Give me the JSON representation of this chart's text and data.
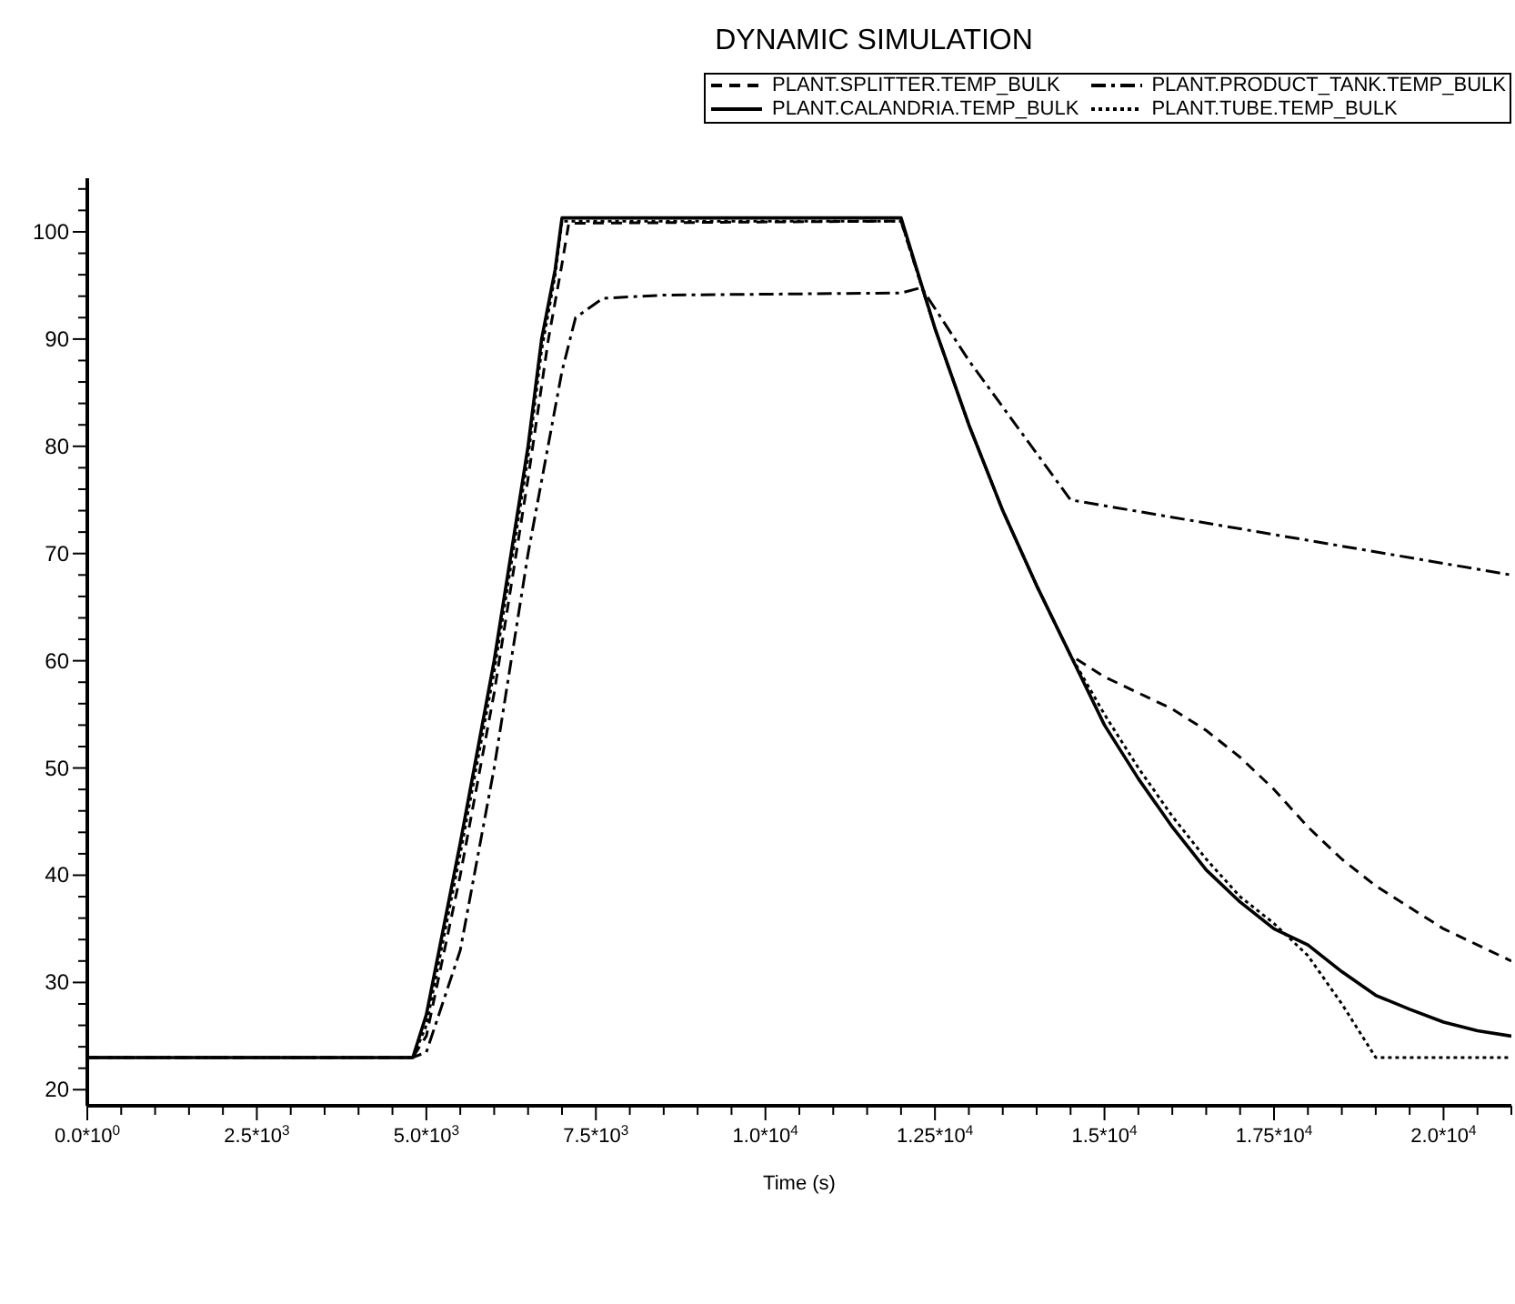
{
  "chart_data": {
    "type": "line",
    "title": "DYNAMIC SIMULATION",
    "xlabel": "Time (s)",
    "legend": "top right",
    "marker": "none",
    "xlim": [
      0,
      21000
    ],
    "xticks": [
      {
        "value": 0,
        "label": "0.0*10$^{0}$"
      },
      {
        "value": 500,
        "label": null
      },
      {
        "value": 1000,
        "label": null
      },
      {
        "value": 1500,
        "label": null
      },
      {
        "value": 2000,
        "label": null
      },
      {
        "value": 2500,
        "label": "2.5*10$^{3}$"
      },
      {
        "value": 3000,
        "label": null
      },
      {
        "value": 3500,
        "label": null
      },
      {
        "value": 4000,
        "label": null
      },
      {
        "value": 4500,
        "label": null
      },
      {
        "value": 5000,
        "label": "5.0*10$^{3}$"
      },
      {
        "value": 5500,
        "label": null
      },
      {
        "value": 6000,
        "label": null
      },
      {
        "value": 6500,
        "label": null
      },
      {
        "value": 7000,
        "label": null
      },
      {
        "value": 7500,
        "label": "7.5*10$^{3}$"
      },
      {
        "value": 8000,
        "label": null
      },
      {
        "value": 8500,
        "label": null
      },
      {
        "value": 9000,
        "label": null
      },
      {
        "value": 9500,
        "label": null
      },
      {
        "value": 10000,
        "label": "1.0*10$^{4}$"
      },
      {
        "value": 10500,
        "label": null
      },
      {
        "value": 11000,
        "label": null
      },
      {
        "value": 11500,
        "label": null
      },
      {
        "value": 12000,
        "label": null
      },
      {
        "value": 12500,
        "label": "1.25*10$^{4}$"
      },
      {
        "value": 13000,
        "label": null
      },
      {
        "value": 13500,
        "label": null
      },
      {
        "value": 14000,
        "label": null
      },
      {
        "value": 14500,
        "label": null
      },
      {
        "value": 15000,
        "label": "1.5*10$^{4}$"
      },
      {
        "value": 15500,
        "label": null
      },
      {
        "value": 16000,
        "label": null
      },
      {
        "value": 16500,
        "label": null
      },
      {
        "value": 17000,
        "label": null
      },
      {
        "value": 17500,
        "label": "1.75*10$^{4}$"
      },
      {
        "value": 18000,
        "label": null
      },
      {
        "value": 18500,
        "label": null
      },
      {
        "value": 19000,
        "label": null
      },
      {
        "value": 19500,
        "label": null
      },
      {
        "value": 20000,
        "label": "2.0*10$^{4}$"
      },
      {
        "value": 20500,
        "label": null
      },
      {
        "value": 21000,
        "label": null
      }
    ],
    "ylim": [
      18.5,
      105
    ],
    "yticks": [
      {
        "value": 20,
        "label": "20"
      },
      {
        "value": 22,
        "label": null
      },
      {
        "value": 24,
        "label": null
      },
      {
        "value": 26,
        "label": null
      },
      {
        "value": 28,
        "label": null
      },
      {
        "value": 30,
        "label": "30"
      },
      {
        "value": 32,
        "label": null
      },
      {
        "value": 34,
        "label": null
      },
      {
        "value": 36,
        "label": null
      },
      {
        "value": 38,
        "label": null
      },
      {
        "value": 40,
        "label": "40"
      },
      {
        "value": 42,
        "label": null
      },
      {
        "value": 44,
        "label": null
      },
      {
        "value": 46,
        "label": null
      },
      {
        "value": 48,
        "label": null
      },
      {
        "value": 50,
        "label": "50"
      },
      {
        "value": 52,
        "label": null
      },
      {
        "value": 54,
        "label": null
      },
      {
        "value": 56,
        "label": null
      },
      {
        "value": 58,
        "label": null
      },
      {
        "value": 60,
        "label": "60"
      },
      {
        "value": 62,
        "label": null
      },
      {
        "value": 64,
        "label": null
      },
      {
        "value": 66,
        "label": null
      },
      {
        "value": 68,
        "label": null
      },
      {
        "value": 70,
        "label": "70"
      },
      {
        "value": 72,
        "label": null
      },
      {
        "value": 74,
        "label": null
      },
      {
        "value": 76,
        "label": null
      },
      {
        "value": 78,
        "label": null
      },
      {
        "value": 80,
        "label": "80"
      },
      {
        "value": 82,
        "label": null
      },
      {
        "value": 84,
        "label": null
      },
      {
        "value": 86,
        "label": null
      },
      {
        "value": 88,
        "label": null
      },
      {
        "value": 90,
        "label": "90"
      },
      {
        "value": 92,
        "label": null
      },
      {
        "value": 94,
        "label": null
      },
      {
        "value": 96,
        "label": null
      },
      {
        "value": 98,
        "label": null
      },
      {
        "value": 100,
        "label": "100"
      },
      {
        "value": 102,
        "label": null
      },
      {
        "value": 104,
        "label": null
      }
    ],
    "series": [
      {
        "name": "PLANT.SPLITTER.TEMP_BULK",
        "color": "#000000",
        "line_style": "dashed",
        "x": [
          0,
          4800,
          5000,
          5500,
          6000,
          6500,
          6800,
          7000,
          7100,
          12000,
          12500,
          13000,
          13500,
          14000,
          14500,
          15000,
          15500,
          16000,
          16500,
          17000,
          17500,
          18000,
          18500,
          19000,
          19500,
          20000,
          20500,
          21000
        ],
        "values": [
          23,
          23,
          25,
          40,
          57,
          77,
          90,
          97,
          100.8,
          101,
          91,
          82,
          74,
          67,
          60.5,
          58.5,
          57,
          55.5,
          53.5,
          51,
          48,
          44.5,
          41.5,
          39,
          37,
          35,
          33.5,
          32
        ]
      },
      {
        "name": "PLANT.PRODUCT_TANK.TEMP_BULK",
        "color": "#000000",
        "line_style": "dashdot",
        "x": [
          0,
          4800,
          5000,
          5500,
          6000,
          6500,
          7000,
          7200,
          7600,
          8500,
          12000,
          12300,
          13000,
          14500,
          21000
        ],
        "values": [
          23,
          23,
          23.5,
          33,
          50,
          70,
          87,
          92,
          93.8,
          94.1,
          94.3,
          94.8,
          88,
          75,
          68
        ]
      },
      {
        "name": "PLANT.CALANDRIA.TEMP_BULK",
        "color": "#000000",
        "line_style": "solid",
        "x": [
          0,
          4800,
          5000,
          5500,
          6000,
          6500,
          6700,
          6900,
          7000,
          12000,
          12500,
          13000,
          13500,
          14000,
          14500,
          15000,
          15500,
          16000,
          16500,
          17000,
          17500,
          18000,
          18500,
          19000,
          19500,
          20000,
          20500,
          21000
        ],
        "values": [
          23,
          23,
          27,
          43,
          60,
          80,
          90,
          96.5,
          101.3,
          101.3,
          91,
          82,
          74,
          67,
          60.5,
          54,
          49,
          44.5,
          40.5,
          37.5,
          35,
          33.5,
          31,
          28.8,
          27.5,
          26.3,
          25.5,
          25
        ]
      },
      {
        "name": "PLANT.TUBE.TEMP_BULK",
        "color": "#000000",
        "line_style": "dotted",
        "x": [
          0,
          4800,
          5000,
          5500,
          6000,
          6500,
          6700,
          6900,
          7000,
          12000,
          12500,
          13000,
          13500,
          14000,
          14500,
          15000,
          15500,
          16000,
          16500,
          17000,
          17500,
          18000,
          18500,
          18800,
          19000,
          21000
        ],
        "values": [
          23,
          23,
          26,
          42,
          59,
          79,
          89,
          96,
          101,
          101,
          91,
          82,
          74,
          67,
          60.5,
          55,
          50,
          45.5,
          41.5,
          38,
          35.5,
          32.5,
          28,
          25,
          23,
          23
        ]
      }
    ]
  }
}
